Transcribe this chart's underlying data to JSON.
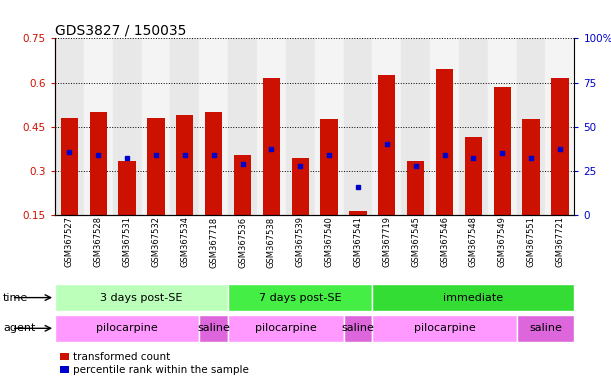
{
  "title": "GDS3827 / 150035",
  "samples": [
    "GSM367527",
    "GSM367528",
    "GSM367531",
    "GSM367532",
    "GSM367534",
    "GSM367718",
    "GSM367536",
    "GSM367538",
    "GSM367539",
    "GSM367540",
    "GSM367541",
    "GSM367719",
    "GSM367545",
    "GSM367546",
    "GSM367548",
    "GSM367549",
    "GSM367551",
    "GSM367721"
  ],
  "bar_heights": [
    0.48,
    0.5,
    0.335,
    0.48,
    0.49,
    0.5,
    0.355,
    0.615,
    0.345,
    0.475,
    0.165,
    0.625,
    0.335,
    0.645,
    0.415,
    0.585,
    0.475,
    0.615
  ],
  "blue_dot_y": [
    0.365,
    0.355,
    0.345,
    0.355,
    0.355,
    0.355,
    0.325,
    0.375,
    0.315,
    0.355,
    0.245,
    0.39,
    0.315,
    0.355,
    0.345,
    0.36,
    0.345,
    0.375
  ],
  "ylim_left": [
    0.15,
    0.75
  ],
  "ylim_right": [
    0,
    100
  ],
  "yticks_left": [
    0.15,
    0.3,
    0.45,
    0.6,
    0.75
  ],
  "yticks_left_labels": [
    "0.15",
    "0.3",
    "0.45",
    "0.6",
    "0.75"
  ],
  "yticks_right": [
    0,
    25,
    50,
    75,
    100
  ],
  "yticks_right_labels": [
    "0",
    "25",
    "50",
    "75",
    "100%"
  ],
  "bar_color": "#cc1100",
  "dot_color": "#0000cc",
  "bar_width": 0.6,
  "time_groups": [
    {
      "label": "3 days post-SE",
      "start": 0,
      "end": 5,
      "color": "#bbffbb"
    },
    {
      "label": "7 days post-SE",
      "start": 6,
      "end": 10,
      "color": "#44ee44"
    },
    {
      "label": "immediate",
      "start": 11,
      "end": 17,
      "color": "#33dd33"
    }
  ],
  "agent_groups": [
    {
      "label": "pilocarpine",
      "start": 0,
      "end": 4,
      "color": "#ff99ff"
    },
    {
      "label": "saline",
      "start": 5,
      "end": 5,
      "color": "#dd66dd"
    },
    {
      "label": "pilocarpine",
      "start": 6,
      "end": 9,
      "color": "#ff99ff"
    },
    {
      "label": "saline",
      "start": 10,
      "end": 10,
      "color": "#dd66dd"
    },
    {
      "label": "pilocarpine",
      "start": 11,
      "end": 15,
      "color": "#ff99ff"
    },
    {
      "label": "saline",
      "start": 16,
      "end": 17,
      "color": "#dd66dd"
    }
  ],
  "legend_items": [
    {
      "label": "transformed count",
      "color": "#cc1100"
    },
    {
      "label": "percentile rank within the sample",
      "color": "#0000cc"
    }
  ],
  "col_bg_even": "#e8e8e8",
  "col_bg_odd": "#f4f4f4"
}
